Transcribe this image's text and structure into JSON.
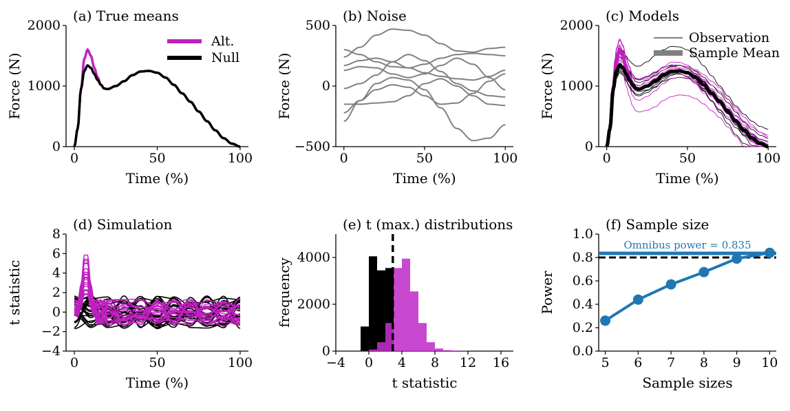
{
  "colors": {
    "alt": "#c020c0",
    "null": "#000000",
    "noise": "#808080",
    "power": "#1f77b4",
    "alt_hist": "#c030c8",
    "alt_hist_dark": "#800080"
  },
  "chart_data": [
    {
      "id": "a",
      "type": "line",
      "title": "(a) True means",
      "xlabel": "Time (%)",
      "ylabel": "Force (N)",
      "xlim": [
        -5,
        105
      ],
      "ylim": [
        0,
        2000
      ],
      "xticks": [
        "0",
        "50",
        "100"
      ],
      "yticks": [
        "0",
        "1000",
        "2000"
      ],
      "legend": {
        "placement": "top-right",
        "entries": [
          "Alt.",
          "Null"
        ]
      },
      "series": [
        {
          "name": "Alt.",
          "x": [
            0,
            2,
            4,
            6,
            8,
            10,
            12,
            14,
            16,
            18,
            20,
            25,
            30,
            35,
            40,
            45,
            50,
            55,
            60,
            65,
            70,
            75,
            80,
            85,
            90,
            95,
            100
          ],
          "values": [
            0,
            300,
            950,
            1450,
            1600,
            1500,
            1300,
            1150,
            1020,
            960,
            950,
            1000,
            1080,
            1180,
            1240,
            1250,
            1220,
            1140,
            1020,
            880,
            740,
            580,
            420,
            270,
            140,
            50,
            0
          ]
        },
        {
          "name": "Null",
          "x": [
            0,
            2,
            4,
            6,
            8,
            10,
            12,
            14,
            16,
            18,
            20,
            25,
            30,
            35,
            40,
            45,
            50,
            55,
            60,
            65,
            70,
            75,
            80,
            85,
            90,
            95,
            100
          ],
          "values": [
            0,
            300,
            950,
            1250,
            1340,
            1300,
            1200,
            1100,
            1020,
            960,
            950,
            1000,
            1080,
            1180,
            1240,
            1250,
            1220,
            1140,
            1020,
            880,
            740,
            580,
            420,
            270,
            140,
            50,
            0
          ]
        }
      ]
    },
    {
      "id": "b",
      "type": "line",
      "title": "(b) Noise",
      "xlabel": "Time (%)",
      "ylabel": "Force (N)",
      "xlim": [
        -5,
        105
      ],
      "ylim": [
        -500,
        500
      ],
      "xticks": [
        "0",
        "50",
        "100"
      ],
      "yticks": [
        "−500",
        "0",
        "500"
      ],
      "series": [
        {
          "x": [
            0,
            10,
            20,
            30,
            40,
            50,
            60,
            70,
            80,
            90,
            100
          ],
          "values": [
            300,
            260,
            200,
            160,
            150,
            180,
            230,
            260,
            270,
            260,
            250
          ]
        },
        {
          "x": [
            0,
            10,
            20,
            30,
            40,
            50,
            60,
            70,
            80,
            90,
            100
          ],
          "values": [
            240,
            320,
            420,
            470,
            460,
            420,
            350,
            290,
            280,
            310,
            320
          ]
        },
        {
          "x": [
            0,
            10,
            20,
            30,
            40,
            50,
            60,
            70,
            80,
            90,
            100
          ],
          "values": [
            130,
            160,
            150,
            100,
            70,
            100,
            170,
            230,
            180,
            70,
            -30
          ]
        },
        {
          "x": [
            0,
            10,
            20,
            30,
            40,
            50,
            60,
            70,
            80,
            90,
            100
          ],
          "values": [
            170,
            210,
            230,
            200,
            150,
            110,
            80,
            60,
            50,
            80,
            130
          ]
        },
        {
          "x": [
            0,
            10,
            20,
            30,
            40,
            50,
            60,
            70,
            80,
            90,
            100
          ],
          "values": [
            -20,
            20,
            90,
            200,
            260,
            210,
            120,
            20,
            -40,
            -80,
            -90
          ]
        },
        {
          "x": [
            0,
            10,
            20,
            30,
            40,
            50,
            60,
            70,
            80,
            90,
            100
          ],
          "values": [
            -150,
            -150,
            -140,
            -130,
            -80,
            20,
            60,
            0,
            -80,
            -150,
            -160
          ]
        },
        {
          "x": [
            0,
            10,
            20,
            30,
            40,
            50,
            60,
            70,
            80,
            90,
            100
          ],
          "values": [
            -220,
            -120,
            -30,
            10,
            -10,
            -80,
            -150,
            -140,
            -60,
            40,
            100
          ]
        },
        {
          "x": [
            0,
            10,
            20,
            30,
            40,
            50,
            60,
            70,
            80,
            90,
            100
          ],
          "values": [
            -290,
            -120,
            20,
            70,
            50,
            -30,
            -180,
            -350,
            -450,
            -430,
            -320
          ]
        }
      ]
    },
    {
      "id": "c",
      "type": "line",
      "title": "(c) Models",
      "xlabel": "Time (%)",
      "ylabel": "Force (N)",
      "xlim": [
        -5,
        105
      ],
      "ylim": [
        0,
        2000
      ],
      "xticks": [
        "0",
        "50",
        "100"
      ],
      "yticks": [
        "0",
        "1000",
        "2000"
      ],
      "legend": {
        "placement": "top-right",
        "entries": [
          "Observation",
          "Sample Mean"
        ]
      }
    },
    {
      "id": "d",
      "type": "line",
      "title": "(d) Simulation",
      "xlabel": "Time (%)",
      "ylabel": "t statistic",
      "xlim": [
        -5,
        105
      ],
      "ylim": [
        -4,
        8
      ],
      "xticks": [
        "0",
        "50",
        "100"
      ],
      "yticks": [
        "−4",
        "−2",
        "0",
        "2",
        "4",
        "6",
        "8"
      ]
    },
    {
      "id": "e",
      "type": "bar",
      "title": "(e) t (max.) distributions",
      "xlabel": "t statistic",
      "ylabel": "frequency",
      "xlim": [
        -4,
        17.5
      ],
      "ylim": [
        0,
        5000
      ],
      "xticks": [
        "−4",
        "0",
        "4",
        "8",
        "12",
        "16"
      ],
      "yticks": [
        "0",
        "2000",
        "4000"
      ],
      "critical_threshold": 2.9,
      "series": [
        {
          "name": "Null",
          "bin_edges": [
            -1,
            0,
            1,
            2,
            3
          ],
          "values": [
            1050,
            4050,
            3450,
            3550
          ]
        },
        {
          "name": "Alt.",
          "bin_edges": [
            -1,
            0,
            1,
            2,
            3,
            4,
            5,
            6,
            7,
            8,
            9,
            10,
            11,
            12
          ],
          "values": [
            10,
            70,
            380,
            1200,
            3550,
            3950,
            2550,
            1200,
            380,
            110,
            40,
            20,
            10
          ]
        }
      ]
    },
    {
      "id": "f",
      "type": "line",
      "title": "(f) Sample size",
      "xlabel": "Sample sizes",
      "ylabel": "Power",
      "xlim": [
        4.8,
        10.2
      ],
      "ylim": [
        0,
        1
      ],
      "xticks": [
        "5",
        "6",
        "7",
        "8",
        "9",
        "10"
      ],
      "yticks": [
        "0.0",
        "0.2",
        "0.4",
        "0.6",
        "0.8",
        "1.0"
      ],
      "annotation": "Omnibus power = 0.835",
      "omnibus_power": 0.835,
      "target_power": 0.8,
      "series": [
        {
          "x": [
            5,
            6,
            7,
            8,
            9,
            10
          ],
          "values": [
            0.26,
            0.44,
            0.57,
            0.675,
            0.79,
            0.84
          ]
        }
      ]
    }
  ]
}
